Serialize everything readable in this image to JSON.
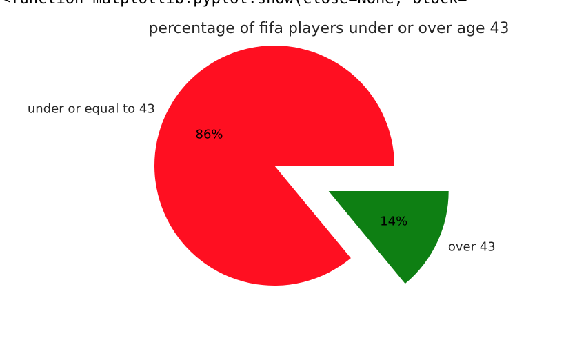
{
  "output": {
    "text": "<function matplotlib.pyplot.show(close=None, block="
  },
  "chart_data": {
    "type": "pie",
    "title": "percentage of fifa players under or over age 43",
    "slices": [
      {
        "label": "under or equal to 43",
        "value": 86,
        "pct_label": "86%",
        "color": "#ff0f21"
      },
      {
        "label": "over 43",
        "value": 14,
        "pct_label": "14%",
        "color": "#0e7f13"
      }
    ],
    "explode": [
      0,
      0.5
    ]
  }
}
